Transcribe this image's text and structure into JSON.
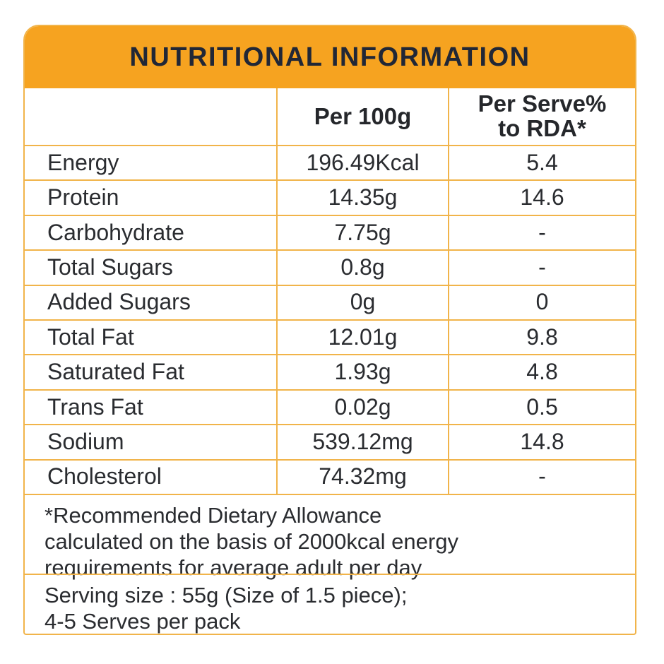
{
  "header": {
    "title": "NUTRITIONAL INFORMATION"
  },
  "columns": {
    "per_100g": "Per 100g",
    "per_serve_line1": "Per Serve%",
    "per_serve_line2": "to RDA*"
  },
  "rows": [
    {
      "label": "Energy",
      "per_100g": "196.49Kcal",
      "per_serve": "5.4"
    },
    {
      "label": "Protein",
      "per_100g": "14.35g",
      "per_serve": "14.6"
    },
    {
      "label": "Carbohydrate",
      "per_100g": "7.75g",
      "per_serve": "-"
    },
    {
      "label": "Total Sugars",
      "per_100g": "0.8g",
      "per_serve": "-"
    },
    {
      "label": "Added Sugars",
      "per_100g": "0g",
      "per_serve": "0"
    },
    {
      "label": "Total Fat",
      "per_100g": "12.01g",
      "per_serve": "9.8"
    },
    {
      "label": "Saturated Fat",
      "per_100g": "1.93g",
      "per_serve": "4.8"
    },
    {
      "label": "Trans Fat",
      "per_100g": "0.02g",
      "per_serve": "0.5"
    },
    {
      "label": "Sodium",
      "per_100g": "539.12mg",
      "per_serve": "14.8"
    },
    {
      "label": "Cholesterol",
      "per_100g": "74.32mg",
      "per_serve": "-"
    }
  ],
  "footnotes": {
    "rda_note_lines": [
      "*Recommended Dietary Allowance",
      "calculated on the basis of 2000kcal energy",
      "requirements for average adult per day"
    ],
    "serving_note_lines": [
      "Serving size : 55g (Size of 1.5 piece);",
      "4-5 Serves per pack"
    ]
  },
  "colors": {
    "band_orange": "#F6A320",
    "gridline": "#F1B44A",
    "body_text": "#2A2C30",
    "title_text": "#212736"
  }
}
